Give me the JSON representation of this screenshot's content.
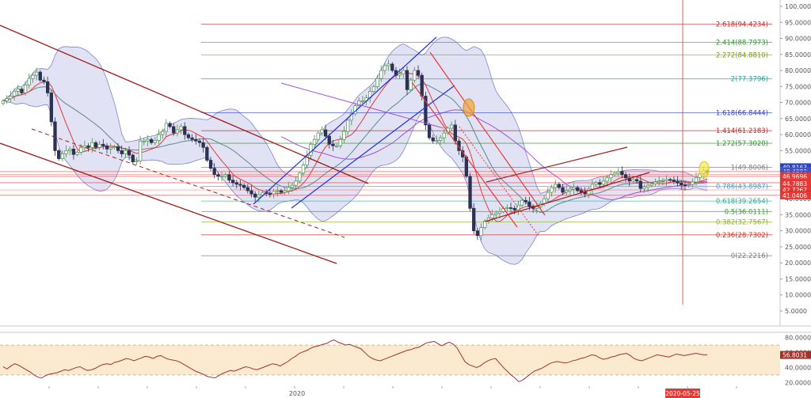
{
  "chart_data": [
    {
      "type": "candlestick",
      "y_axis": {
        "range": [
          5,
          100
        ],
        "ticks": [
          "100.0000",
          "95.0000",
          "90.0000",
          "85.0000",
          "80.0000",
          "75.0000",
          "70.0000",
          "65.0000",
          "60.0000",
          "55.0000",
          "50.0000",
          "45.0000",
          "40.0000",
          "35.0000",
          "30.0000",
          "25.0000",
          "20.0000",
          "15.0000",
          "10.0000",
          "5.0000"
        ]
      },
      "x_axis": {
        "labels": [
          "2020",
          "2020-05-25"
        ]
      },
      "candles_close_approx": [
        70.5,
        71.2,
        72,
        73.5,
        74.2,
        73,
        75.5,
        77.5,
        78.5,
        79.5,
        77,
        76.5,
        73,
        64,
        55,
        52.5,
        54,
        55,
        55.5,
        53.8,
        54.5,
        56,
        56.5,
        56,
        57.5,
        56,
        57,
        56.5,
        55.5,
        56,
        56.2,
        55,
        54,
        55,
        53.6,
        51.5,
        51.8,
        58,
        58,
        58.5,
        57.5,
        58.2,
        60,
        61,
        63.5,
        62.5,
        60.5,
        61.5,
        62.5,
        60,
        59,
        58.5,
        58,
        57.5,
        56,
        52,
        49.5,
        47.5,
        47,
        47,
        47.5,
        45.8,
        45,
        44.5,
        44.2,
        43.5,
        42.5,
        41.5,
        40.5,
        41.2,
        41.8,
        41.6,
        41.5,
        42.3,
        42.5,
        42,
        42.5,
        43.5,
        44.2,
        45.5,
        48,
        50.5,
        53.5,
        57,
        58.5,
        60.5,
        61.5,
        59.5,
        57,
        56.5,
        56.5,
        58.5,
        61,
        64.5,
        66.5,
        69,
        70.5,
        70.5,
        71.5,
        73.5,
        75,
        77.5,
        80,
        81.5,
        82,
        80,
        78.5,
        79,
        80,
        74,
        77,
        80,
        78.5,
        72,
        63,
        59,
        58,
        58.2,
        59,
        60.5,
        62,
        63,
        58,
        55,
        53,
        47,
        37,
        30,
        28.5,
        31,
        33,
        34,
        35,
        35.5,
        36,
        37,
        37.2,
        37,
        36.5,
        38,
        39.5,
        39,
        37.5,
        37,
        37.5,
        38.5,
        40,
        42,
        43.5,
        44.5,
        43.5,
        42,
        42.5,
        43,
        43.5,
        42.5,
        42,
        41.5,
        43,
        44.5,
        45,
        44.5,
        45.5,
        46.5,
        47.5,
        48,
        48.5,
        47.5,
        46.5,
        45.5,
        46,
        45.5,
        43.2,
        43.7,
        44.2,
        44.7,
        45.2,
        45.5,
        45.6,
        46,
        45.8,
        45.4,
        44.9,
        44.3,
        44.1,
        44.4,
        45.2,
        46.6,
        47.8,
        48.7,
        48.3
      ],
      "fibonacci_levels": [
        {
          "label": "2.618(94.4234)",
          "value": 94.4234,
          "color": "#c62828"
        },
        {
          "label": "2.414(88.7973)",
          "value": 88.7973,
          "color": "#2e9a2e"
        },
        {
          "label": "2.272(84.8810)",
          "value": 84.881,
          "color": "#7a9a1a"
        },
        {
          "label": "2(77.3796)",
          "value": 77.3796,
          "color": "#26a69a"
        },
        {
          "label": "1.618(66.8444)",
          "value": 66.8444,
          "color": "#3040c0"
        },
        {
          "label": "1.414(61.2183)",
          "value": 61.2183,
          "color": "#c62828"
        },
        {
          "label": "1.272(57.3020)",
          "value": 57.302,
          "color": "#2e9a2e"
        },
        {
          "label": "1(49.8006)",
          "value": 49.8006,
          "color": "#808080"
        },
        {
          "label": "0.786(43.8987)",
          "value": 43.8987,
          "color": "#4a9acb"
        },
        {
          "label": "0.618(39.2654)",
          "value": 39.2654,
          "color": "#2eaa9a"
        },
        {
          "label": "0.5(36.0111)",
          "value": 36.0111,
          "color": "#3aa03a"
        },
        {
          "label": "0.382(32.7567)",
          "value": 32.7567,
          "color": "#8ab030"
        },
        {
          "label": "0.236(28.7302)",
          "value": 28.7302,
          "color": "#d03020"
        },
        {
          "label": "0(22.2216)",
          "value": 22.2216,
          "color": "#808080"
        }
      ],
      "price_tags": [
        {
          "label": "49.8163",
          "value": 49.8163,
          "color": "#3040c0"
        },
        {
          "label": "48.5569",
          "value": 48.5569,
          "color": "#e53935"
        },
        {
          "label": "48.4283",
          "value": 48.4283,
          "color": "#3a56c6"
        },
        {
          "label": "47.5790",
          "value": 47.579,
          "color": "#3a56c6"
        },
        {
          "label": "46.9696",
          "value": 46.9696,
          "color": "#e53935"
        },
        {
          "label": "45.1381",
          "value": 45.1381,
          "color": "#e53935"
        },
        {
          "label": "44.6520",
          "value": 44.652,
          "color": "#2a3050"
        },
        {
          "label": "44.7883",
          "value": 44.7883,
          "color": "#e53935"
        },
        {
          "label": "42.7267",
          "value": 42.7267,
          "color": "#e53935"
        },
        {
          "label": "41.1484",
          "value": 41.1484,
          "color": "#2c3fd0"
        },
        {
          "label": "41.0406",
          "value": 41.0406,
          "color": "#e53935"
        }
      ]
    },
    {
      "type": "line",
      "name": "",
      "y_axis": {
        "range": [
          20,
          80
        ],
        "ticks": [
          "80.0000",
          "60.0000",
          "40.0000",
          "20.0000"
        ]
      },
      "band": [
        30,
        70
      ],
      "current": "56.8031",
      "values": [
        41,
        38,
        42,
        45,
        43,
        40,
        37,
        34,
        30,
        27,
        26,
        29,
        31,
        32,
        33,
        35,
        37,
        36,
        38,
        40,
        41,
        38,
        36,
        37,
        39,
        42,
        44,
        45,
        44,
        47,
        48,
        50,
        52,
        51,
        49,
        51,
        53,
        55,
        54,
        52,
        55,
        56,
        53,
        51,
        50,
        49,
        47,
        44,
        41,
        38,
        35,
        33,
        31,
        28,
        27,
        26,
        29,
        32,
        34,
        36,
        35,
        37,
        39,
        41,
        40,
        38,
        37,
        39,
        41,
        43,
        45,
        44,
        42,
        45,
        48,
        52,
        55,
        59,
        61,
        63,
        66,
        68,
        69,
        71,
        72,
        75,
        77,
        74,
        72,
        70,
        71,
        69,
        67,
        65,
        60,
        55,
        52,
        50,
        49,
        51,
        53,
        55,
        57,
        59,
        61,
        63,
        64,
        66,
        67,
        70,
        73,
        74,
        75,
        72,
        69,
        72,
        74,
        71,
        66,
        57,
        48,
        44,
        42,
        40,
        42,
        46,
        49,
        51,
        52,
        46,
        40,
        35,
        30,
        26,
        21,
        23,
        27,
        31,
        35,
        37,
        39,
        42,
        45,
        47,
        48,
        47,
        46,
        47,
        49,
        50,
        52,
        53,
        55,
        57,
        56,
        53,
        51,
        52,
        54,
        55,
        57,
        58,
        59,
        56,
        52,
        50,
        49,
        51,
        53,
        55,
        57,
        56,
        55,
        54,
        56,
        58,
        57,
        56,
        57,
        58,
        59,
        58,
        57,
        57
      ],
      "current_value": 56.8
    }
  ]
}
